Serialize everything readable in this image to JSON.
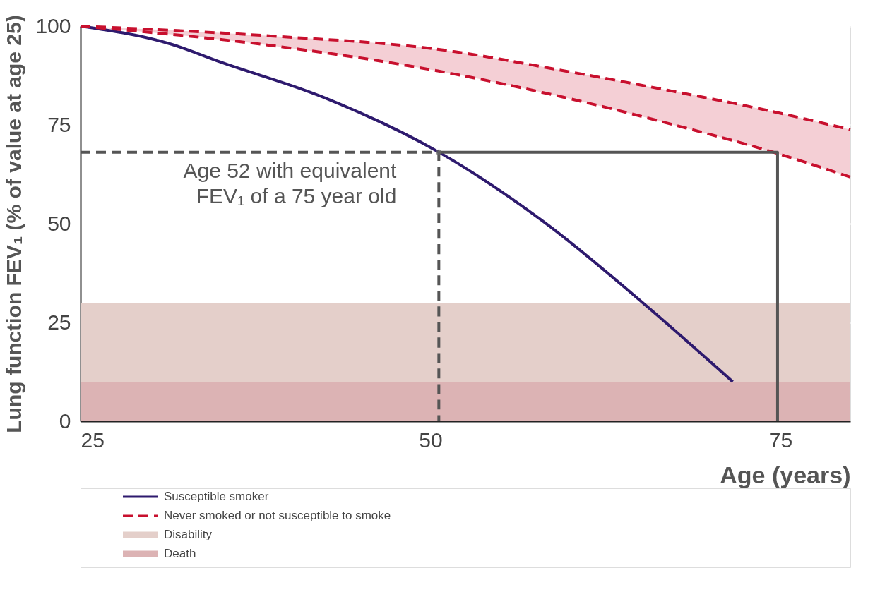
{
  "chart_data": {
    "type": "line",
    "xlabel": "Age (years)",
    "ylabel": "Lung function FEV₁ (% of value at age 25)",
    "xlim": [
      25,
      80
    ],
    "ylim": [
      0,
      100
    ],
    "xticks": [
      25,
      50,
      75
    ],
    "yticks": [
      0,
      25,
      50,
      75,
      100
    ],
    "grid": "y",
    "legend": "bottom left",
    "series": [
      {
        "name": "Susceptible smoker",
        "color": "#2e1a6e",
        "line_style": "solid",
        "x": [
          25,
          31.5,
          35,
          42.2,
          50.6,
          58.2,
          65.4,
          71.6
        ],
        "values": [
          100,
          95.4,
          90.9,
          82.2,
          68.1,
          50.2,
          29.3,
          10
        ]
      },
      {
        "name": "Never smoked or not susceptible to smoke",
        "color": "#c8102e",
        "line_style": "dashed",
        "x": [
          25,
          38.6,
          50.6,
          60,
          67.2,
          74.3,
          80
        ],
        "values": [
          100,
          97.5,
          94.1,
          88.4,
          83.6,
          78.5,
          73.8
        ],
        "lower": [
          100,
          95.1,
          88.6,
          81.6,
          75.2,
          68.3,
          61.8
        ],
        "upper": [
          100,
          97.5,
          94.1,
          88.4,
          83.6,
          78.5,
          73.8
        ]
      },
      {
        "color": "#c8102e",
        "line_style": "dashed",
        "x": [
          25,
          38.6,
          50.6,
          60,
          67.2,
          74.3,
          80
        ],
        "values": [
          100,
          95.1,
          88.6,
          81.6,
          75.2,
          68.3,
          61.8
        ]
      },
      {
        "color": "#555555",
        "line_style": "dashed",
        "x": [
          25,
          50.6,
          50.6
        ],
        "values": [
          68.1,
          68.1,
          0
        ]
      },
      {
        "color": "#555555",
        "line_style": "solid",
        "x": [
          50.6,
          74.8,
          74.8
        ],
        "values": [
          68.1,
          68.1,
          0
        ]
      }
    ],
    "bands": [
      {
        "axis": "y",
        "from": 10,
        "to": 30,
        "label": "Disability",
        "color": "#e4cfca"
      },
      {
        "axis": "y",
        "from": 0,
        "to": 10,
        "label": "Death",
        "color": "#dcb3b4"
      }
    ],
    "annotations": [
      {
        "text": "Age 52 with equivalent\nFEV₁ of a 75 year old",
        "x": 50.6,
        "y": 68.1
      }
    ]
  }
}
